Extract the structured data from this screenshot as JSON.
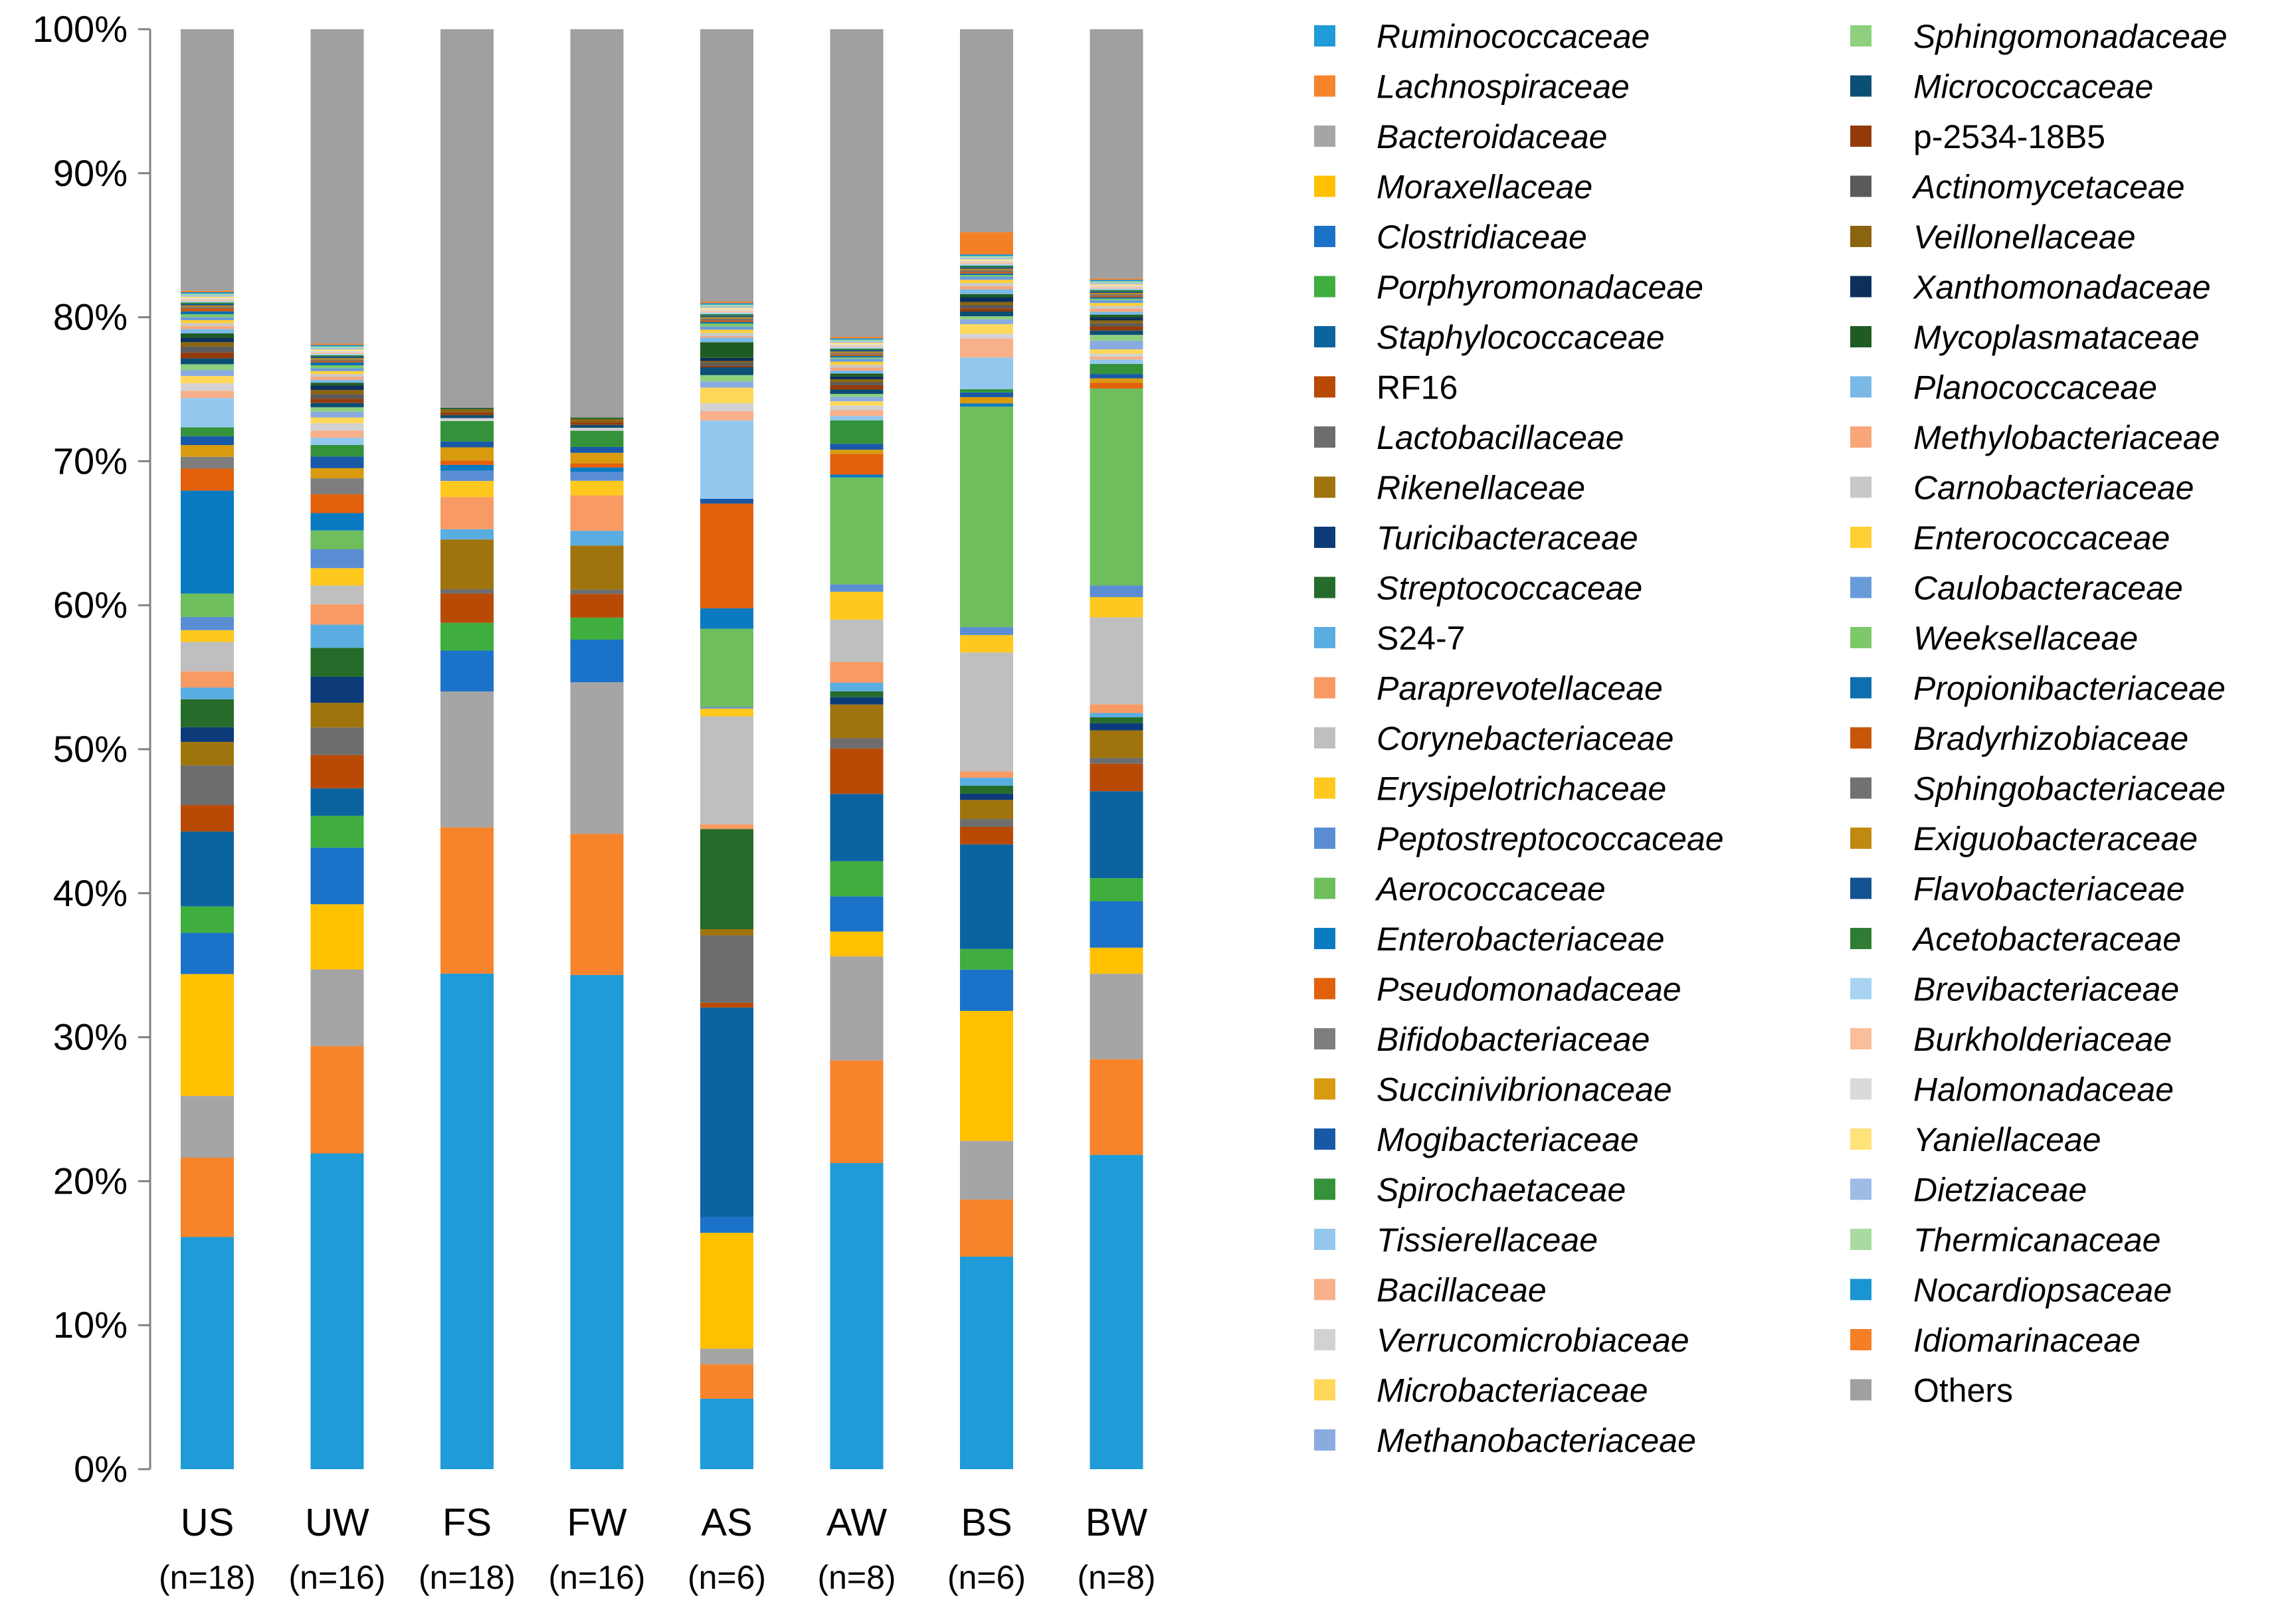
{
  "chart_data": {
    "type": "bar",
    "stacked": true,
    "normalized_to_percent": true,
    "title": "",
    "xlabel": "",
    "ylabel": "",
    "ylim": [
      0,
      100
    ],
    "y_ticks": [
      "0%",
      "10%",
      "20%",
      "30%",
      "40%",
      "50%",
      "60%",
      "70%",
      "80%",
      "90%",
      "100%"
    ],
    "categories": [
      "US",
      "UW",
      "FS",
      "FW",
      "AS",
      "AW",
      "BS",
      "BW"
    ],
    "category_sublabels": [
      "(n=18)",
      "(n=16)",
      "(n=18)",
      "(n=16)",
      "(n=6)",
      "(n=8)",
      "(n=6)",
      "(n=8)"
    ],
    "legend_position": "right",
    "series": [
      {
        "name": "Ruminococcaceae",
        "italic": true,
        "color": "#1F9BD7",
        "values": [
          15.8,
          21.8,
          33.9,
          33.6,
          4.5,
          20.9,
          13.4,
          21.7
        ]
      },
      {
        "name": "Lachnospiraceae",
        "italic": true,
        "color": "#F7832B",
        "values": [
          5.4,
          7.4,
          10.0,
          9.6,
          2.2,
          7.0,
          3.6,
          6.6
        ]
      },
      {
        "name": "Bacteroidaceae",
        "italic": true,
        "color": "#A5A5A5",
        "values": [
          4.2,
          5.3,
          9.3,
          10.3,
          1.0,
          7.1,
          3.7,
          5.9
        ]
      },
      {
        "name": "Moraxellaceae",
        "italic": true,
        "color": "#FFC000",
        "values": [
          8.3,
          4.5,
          0,
          0,
          7.4,
          1.7,
          8.2,
          1.8
        ]
      },
      {
        "name": "Clostridiaceae",
        "italic": true,
        "color": "#1B72C9",
        "values": [
          2.8,
          3.9,
          2.8,
          2.9,
          1.0,
          2.4,
          2.6,
          3.2
        ]
      },
      {
        "name": "Porphyromonadaceae",
        "italic": true,
        "color": "#3FAE3F",
        "values": [
          1.8,
          2.2,
          1.9,
          1.5,
          0,
          2.4,
          1.3,
          1.6
        ]
      },
      {
        "name": "Staphylococcaceae",
        "italic": true,
        "color": "#0B64A0",
        "values": [
          5.1,
          1.9,
          0,
          0,
          13.4,
          4.6,
          6.6,
          6.0
        ]
      },
      {
        "name": "RF16",
        "italic": false,
        "color": "#B94A06",
        "values": [
          1.8,
          2.3,
          2.0,
          1.6,
          0.3,
          3.1,
          1.1,
          1.9
        ]
      },
      {
        "name": "Lactobacillaceae",
        "italic": true,
        "color": "#6D6D6D",
        "values": [
          2.7,
          1.9,
          0.3,
          0.3,
          4.3,
          0.7,
          0.5,
          0.4
        ]
      },
      {
        "name": "Rikenellaceae",
        "italic": true,
        "color": "#A0740D",
        "values": [
          1.6,
          1.7,
          3.4,
          3.0,
          0.4,
          2.3,
          1.2,
          1.9
        ]
      },
      {
        "name": "Turicibacteraceae",
        "italic": true,
        "color": "#0D3B7A",
        "values": [
          1.0,
          1.8,
          0,
          0,
          0,
          0.5,
          0.4,
          0.5
        ]
      },
      {
        "name": "Streptococcaceae",
        "italic": true,
        "color": "#256C2A",
        "values": [
          1.9,
          2.0,
          0,
          0,
          6.4,
          0.4,
          0.5,
          0.4
        ]
      },
      {
        "name": "S24-7",
        "italic": false,
        "color": "#5AADE0",
        "values": [
          0.8,
          1.6,
          0.7,
          1.0,
          0,
          0.6,
          0.5,
          0.3
        ]
      },
      {
        "name": "Paraprevotellaceae",
        "italic": true,
        "color": "#F89A63",
        "values": [
          1.1,
          1.4,
          2.2,
          2.4,
          0.3,
          1.4,
          0.4,
          0.6
        ]
      },
      {
        "name": "Corynebacteriaceae",
        "italic": true,
        "color": "#BFBFBF",
        "values": [
          2.0,
          1.3,
          0,
          0,
          6.9,
          2.9,
          7.5,
          6.0
        ]
      },
      {
        "name": "Erysipelotrichaceae",
        "italic": true,
        "color": "#FFC81E",
        "values": [
          0.8,
          1.2,
          1.1,
          1.0,
          0.5,
          1.9,
          1.1,
          1.4
        ]
      },
      {
        "name": "Peptostreptococcaceae",
        "italic": true,
        "color": "#5B8DD5",
        "values": [
          0.9,
          1.3,
          0.7,
          0.6,
          0.1,
          0.5,
          0.5,
          0.8
        ]
      },
      {
        "name": "Aerococcaceae",
        "italic": true,
        "color": "#6EBE5E",
        "values": [
          1.6,
          1.3,
          0,
          0,
          5.0,
          7.3,
          13.9,
          13.6
        ]
      },
      {
        "name": "Enterobacteriaceae",
        "italic": true,
        "color": "#0A7AC2",
        "values": [
          7.0,
          1.2,
          0.4,
          0.3,
          1.3,
          0.2,
          0.2,
          0
        ]
      },
      {
        "name": "Pseudomonadaceae",
        "italic": true,
        "color": "#E2600A",
        "values": [
          1.5,
          1.3,
          0.3,
          0.3,
          6.7,
          1.4,
          0,
          0.4
        ]
      },
      {
        "name": "Bifidobacteriaceae",
        "italic": true,
        "color": "#7E7E7E",
        "values": [
          0.8,
          1.1,
          0,
          0,
          0,
          0,
          0,
          0
        ]
      },
      {
        "name": "Succinivibrionaceae",
        "italic": true,
        "color": "#D89B0F",
        "values": [
          0.8,
          0.7,
          0.9,
          0.7,
          0,
          0.3,
          0.4,
          0.3
        ]
      },
      {
        "name": "Mogibacteriaceae",
        "italic": true,
        "color": "#1859A7",
        "values": [
          0.6,
          0.8,
          0.4,
          0.4,
          0.3,
          0.4,
          0.3,
          0.3
        ]
      },
      {
        "name": "Spirochaetaceae",
        "italic": true,
        "color": "#34923A",
        "values": [
          0.6,
          0.8,
          1.4,
          1.1,
          0,
          1.6,
          0.2,
          0.7
        ]
      },
      {
        "name": "Tissierellaceae",
        "italic": true,
        "color": "#94C7EE",
        "values": [
          2.0,
          0.5,
          0,
          0,
          5.0,
          0.3,
          2.0,
          0.3
        ]
      },
      {
        "name": "Bacillaceae",
        "italic": true,
        "color": "#F7B08A",
        "values": [
          0.5,
          0.5,
          0,
          0,
          0.6,
          0.4,
          1.2,
          0.2
        ]
      },
      {
        "name": "Verrucomicrobiaceae",
        "italic": true,
        "color": "#D2D2D2",
        "values": [
          0.5,
          0.5,
          0.2,
          0.2,
          0.5,
          0.3,
          0.3,
          0.2
        ]
      },
      {
        "name": "Microbacteriaceae",
        "italic": true,
        "color": "#FFD85A",
        "values": [
          0.5,
          0.4,
          0,
          0,
          1.0,
          0.3,
          0.6,
          0.3
        ]
      },
      {
        "name": "Methanobacteriaceae",
        "italic": true,
        "color": "#8AABE0",
        "values": [
          0.4,
          0.4,
          0,
          0,
          0.4,
          0.3,
          0.3,
          0.6
        ]
      },
      {
        "name": "Sphingomonadaceae",
        "italic": true,
        "color": "#8ED07E",
        "values": [
          0.4,
          0.3,
          0,
          0,
          0.4,
          0.2,
          0.2,
          0.4
        ]
      },
      {
        "name": "Micrococcaceae",
        "italic": true,
        "color": "#0C4F74",
        "values": [
          0.4,
          0.3,
          0.2,
          0.2,
          0.5,
          0.3,
          0.3,
          0.3
        ]
      },
      {
        "name": "p-2534-18B5",
        "italic": false,
        "color": "#933C0A",
        "values": [
          0.4,
          0.3,
          0.2,
          0.2,
          0.1,
          0.3,
          0.2,
          0.3
        ]
      },
      {
        "name": "Actinomycetaceae",
        "italic": true,
        "color": "#5A5A5A",
        "values": [
          0.4,
          0.3,
          0,
          0,
          0.2,
          0.2,
          0.2,
          0.2
        ]
      },
      {
        "name": "Veillonellaceae",
        "italic": true,
        "color": "#8A640F",
        "values": [
          0.3,
          0.3,
          0.2,
          0.2,
          0.1,
          0.2,
          0.2,
          0.2
        ]
      },
      {
        "name": "Xanthomonadaceae",
        "italic": true,
        "color": "#0C2F5C",
        "values": [
          0.3,
          0.3,
          0,
          0,
          0.2,
          0.2,
          0.3,
          0.2
        ]
      },
      {
        "name": "Mycoplasmataceae",
        "italic": true,
        "color": "#1F5C24",
        "values": [
          0.3,
          0.2,
          0.1,
          0.1,
          1.0,
          0.2,
          0.2,
          0.2
        ]
      },
      {
        "name": "Planococcaceae",
        "italic": true,
        "color": "#7AB9E6",
        "values": [
          0.3,
          0.2,
          0,
          0,
          0.3,
          0.2,
          0.3,
          0.2
        ]
      },
      {
        "name": "Methylobacteriaceae",
        "italic": true,
        "color": "#F9A67A",
        "values": [
          0.2,
          0.2,
          0,
          0,
          0.1,
          0.2,
          0.2,
          0.2
        ]
      },
      {
        "name": "Carnobacteriaceae",
        "italic": true,
        "color": "#C8C8C8",
        "values": [
          0.2,
          0.2,
          0,
          0,
          0.2,
          0.2,
          0.2,
          0.2
        ]
      },
      {
        "name": "Enterococcaceae",
        "italic": true,
        "color": "#FFCF33",
        "values": [
          0.2,
          0.2,
          0,
          0,
          0.2,
          0.2,
          0.2,
          0.2
        ]
      },
      {
        "name": "Caulobacteraceae",
        "italic": true,
        "color": "#6A9BD9",
        "values": [
          0.2,
          0.2,
          0,
          0,
          0.2,
          0.2,
          0.2,
          0.2
        ]
      },
      {
        "name": "Weeksellaceae",
        "italic": true,
        "color": "#7CC86A",
        "values": [
          0.2,
          0.2,
          0,
          0,
          0.2,
          0.1,
          0.1,
          0.1
        ]
      },
      {
        "name": "Propionibacteriaceae",
        "italic": true,
        "color": "#0E6FAE",
        "values": [
          0.2,
          0.2,
          0,
          0,
          0.1,
          0.1,
          0.1,
          0.1
        ]
      },
      {
        "name": "Bradyrhizobiaceae",
        "italic": true,
        "color": "#C8560A",
        "values": [
          0.2,
          0.1,
          0,
          0,
          0.1,
          0.1,
          0.1,
          0.1
        ]
      },
      {
        "name": "Sphingobacteriaceae",
        "italic": true,
        "color": "#727272",
        "values": [
          0.1,
          0.1,
          0,
          0,
          0.1,
          0.1,
          0.1,
          0.1
        ]
      },
      {
        "name": "Exiguobacteraceae",
        "italic": true,
        "color": "#C08A10",
        "values": [
          0.1,
          0.1,
          0,
          0,
          0.1,
          0.1,
          0.1,
          0.1
        ]
      },
      {
        "name": "Flavobacteriaceae",
        "italic": true,
        "color": "#145291",
        "values": [
          0.1,
          0.1,
          0,
          0,
          0.1,
          0.1,
          0.1,
          0.1
        ]
      },
      {
        "name": "Acetobacteraceae",
        "italic": true,
        "color": "#2E7D32",
        "values": [
          0.1,
          0.1,
          0,
          0,
          0.1,
          0.1,
          0.1,
          0.1
        ]
      },
      {
        "name": "Brevibacteriaceae",
        "italic": true,
        "color": "#A8D4F2",
        "values": [
          0.1,
          0.1,
          0,
          0,
          0.1,
          0.1,
          0.1,
          0.1
        ]
      },
      {
        "name": "Burkholderiaceae",
        "italic": true,
        "color": "#F9BE9C",
        "values": [
          0.1,
          0.1,
          0,
          0,
          0.1,
          0.1,
          0.1,
          0.1
        ]
      },
      {
        "name": "Halomonadaceae",
        "italic": true,
        "color": "#DADADA",
        "values": [
          0.1,
          0.1,
          0,
          0,
          0.1,
          0.1,
          0.1,
          0.1
        ]
      },
      {
        "name": "Yaniellaceae",
        "italic": true,
        "color": "#FFE27A",
        "values": [
          0.1,
          0.1,
          0,
          0,
          0.1,
          0.1,
          0.1,
          0.1
        ]
      },
      {
        "name": "Dietziaceae",
        "italic": true,
        "color": "#9FBCE6",
        "values": [
          0.1,
          0.1,
          0,
          0,
          0.1,
          0.1,
          0.1,
          0.1
        ]
      },
      {
        "name": "Thermicanaceae",
        "italic": true,
        "color": "#A9DBA0",
        "values": [
          0.1,
          0.1,
          0,
          0,
          0.1,
          0.1,
          0.1,
          0.1
        ]
      },
      {
        "name": "Nocardiopsaceae",
        "italic": true,
        "color": "#1A94D2",
        "values": [
          0.1,
          0.1,
          0,
          0,
          0.1,
          0.1,
          0.1,
          0.1
        ]
      },
      {
        "name": "Idiomarinaceae",
        "italic": true,
        "color": "#F57F25",
        "values": [
          0.1,
          0.1,
          0,
          0,
          0.1,
          0.1,
          1.4,
          0.1
        ]
      },
      {
        "name": "Others",
        "italic": false,
        "color": "#A0A0A0",
        "values": [
          17.8,
          21.7,
          25.9,
          26.4,
          17.4,
          21.0,
          12.8,
          17.2
        ]
      }
    ]
  }
}
